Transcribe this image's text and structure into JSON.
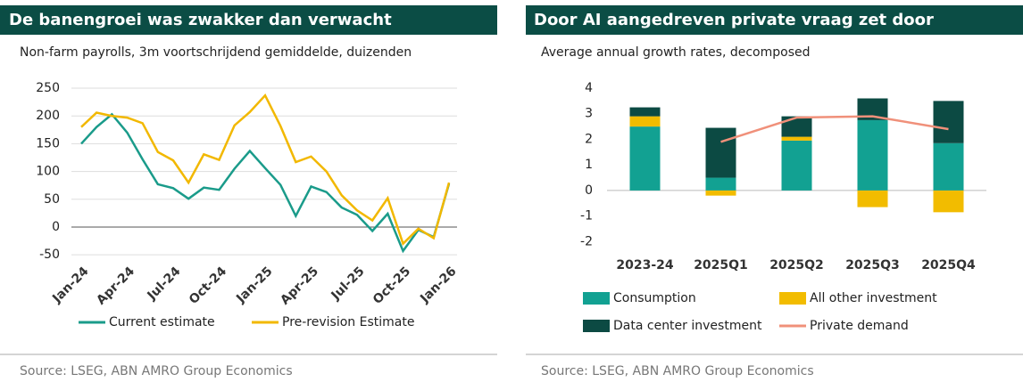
{
  "chart_data": [
    {
      "type": "line",
      "title": "De banengroei was zwakker dan verwacht",
      "subtitle": "Non-farm payrolls, 3m voortschrijdend gemiddelde, duizenden",
      "source": "Source: LSEG, ABN AMRO Group Economics",
      "categories": [
        "Jan-24",
        null,
        null,
        "Apr-24",
        null,
        null,
        "Jul-24",
        null,
        null,
        "Oct-24",
        null,
        null,
        "Jan-25",
        null,
        null,
        "Apr-25",
        null,
        null,
        "Jul-25",
        null,
        null,
        "Oct-25",
        null,
        null,
        "Jan-26"
      ],
      "series": [
        {
          "name": "Current estimate",
          "color": "#1a9b8a",
          "values": [
            150,
            180,
            203,
            170,
            122,
            77,
            70,
            51,
            71,
            67,
            105,
            137,
            106,
            76,
            20,
            73,
            63,
            35,
            22,
            -7,
            24,
            -43,
            -5,
            -18,
            78
          ]
        },
        {
          "name": "Pre-revision Estimate",
          "color": "#f2b800",
          "values": [
            180,
            206,
            200,
            197,
            187,
            135,
            120,
            80,
            131,
            121,
            183,
            207,
            237,
            182,
            117,
            127,
            100,
            57,
            30,
            12,
            52,
            -30,
            -3,
            -20,
            80
          ]
        }
      ],
      "ylim": [
        -60,
        260
      ],
      "yticks": [
        -50,
        0,
        50,
        100,
        150,
        200,
        250
      ],
      "grid": true
    },
    {
      "type": "bar",
      "title": "Door AI aangedreven private vraag zet door",
      "subtitle": "Average annual growth rates, decomposed",
      "source": "Source: LSEG, ABN AMRO Group Economics",
      "categories": [
        "2023-24",
        "2025Q1",
        "2025Q2",
        "2025Q3",
        "2025Q4"
      ],
      "stacked": true,
      "series": [
        {
          "name": "Consumption",
          "color": "#12a192",
          "values": [
            2.5,
            0.5,
            1.95,
            2.75,
            1.85
          ]
        },
        {
          "name": "All other investment",
          "color": "#f2bc00",
          "values": [
            0.4,
            -0.2,
            0.15,
            -0.65,
            -0.85
          ]
        },
        {
          "name": "Data center investment",
          "color": "#0c4a43",
          "values": [
            0.35,
            1.95,
            0.8,
            0.85,
            1.65
          ]
        },
        {
          "name": "Private demand",
          "color": "#f0907a",
          "type": "line",
          "values": [
            null,
            1.9,
            2.85,
            2.9,
            2.4
          ]
        }
      ],
      "ylim": [
        -2.3,
        4.3
      ],
      "yticks": [
        -2,
        -1,
        0,
        1,
        2,
        3,
        4
      ],
      "grid": false
    }
  ]
}
